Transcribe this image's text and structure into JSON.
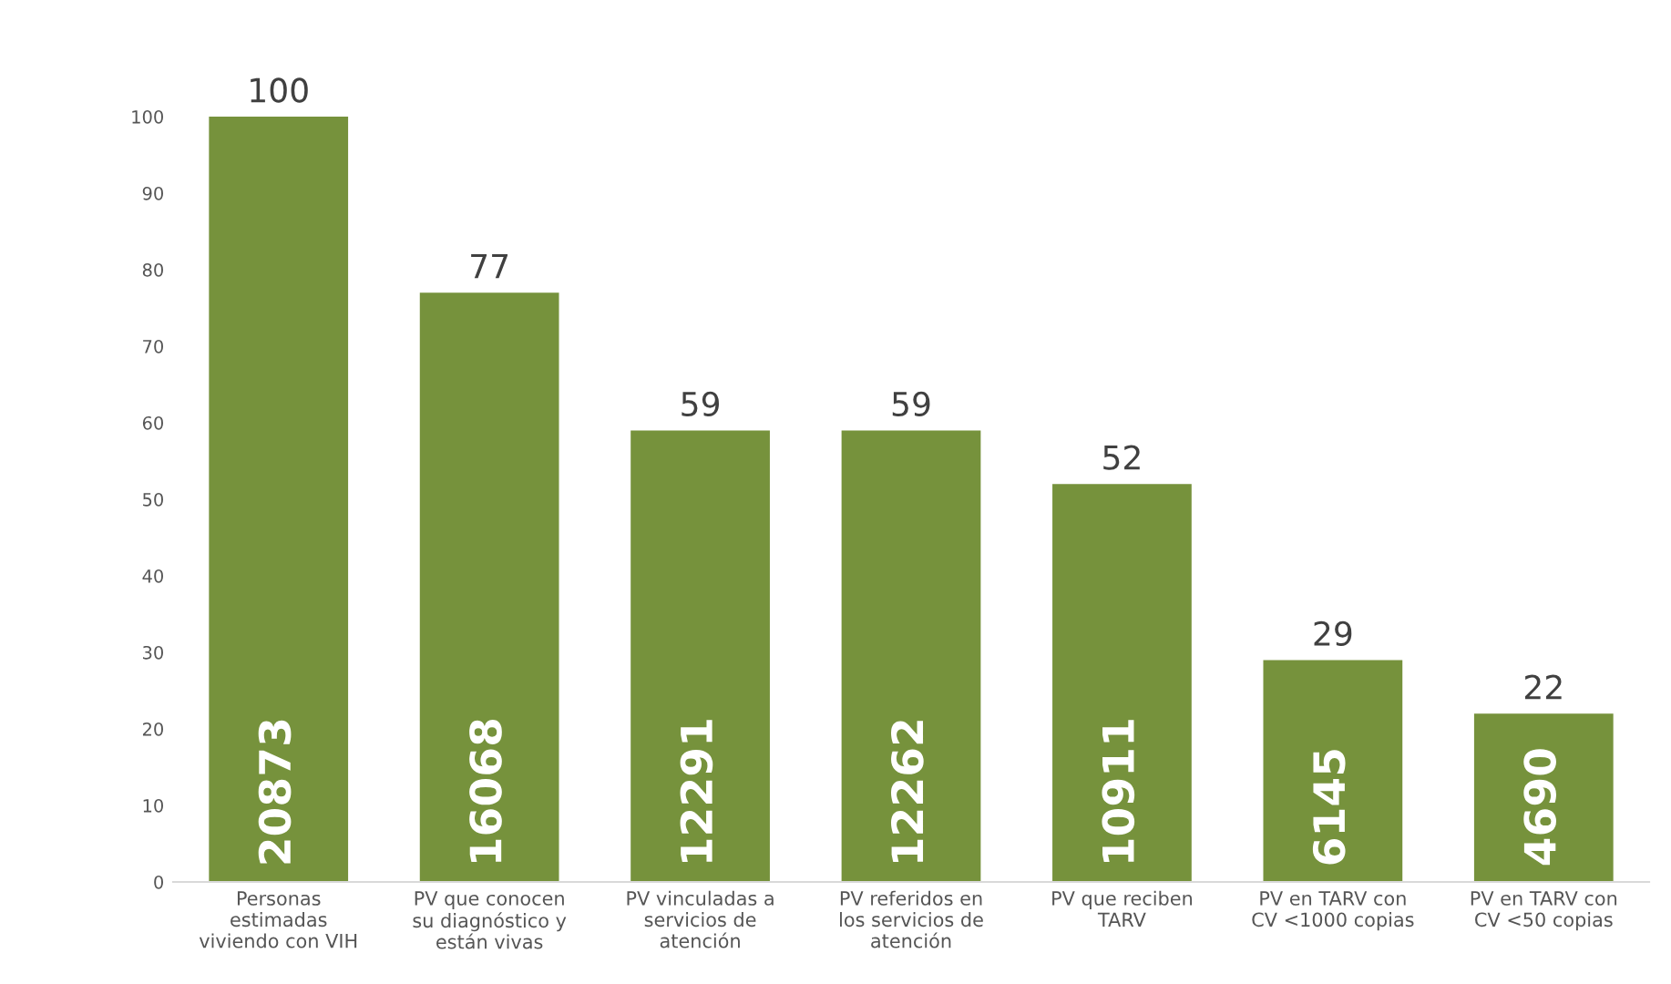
{
  "chart_data": {
    "type": "bar",
    "categories": [
      "Personas\nestimadas\nviviendo con VIH",
      "PV que conocen\nsu diagnóstico y\nestán vivas",
      "PV vinculadas a\nservicios de\natención",
      "PV referidos en\nlos servicios de\natención",
      "PV que reciben\nTARV",
      "PV en TARV con\nCV <1000 copias",
      "PV en TARV con\nCV <50 copias"
    ],
    "values": [
      100,
      77,
      59,
      59,
      52,
      29,
      22
    ],
    "color": "#76923c",
    "ylim": [
      0,
      100
    ],
    "yticks": [
      0,
      10,
      20,
      30,
      40,
      50,
      60,
      70,
      80,
      90,
      100
    ],
    "data_labels": true,
    "grid": false,
    "annotations": [
      {
        "text": "20873",
        "x": "Personas\nestimadas\nviviendo con VIH",
        "y": 0
      },
      {
        "text": "16068",
        "x": "PV que conocen\nsu diagnóstico y\nestán vivas",
        "y": 0
      },
      {
        "text": "12291",
        "x": "PV vinculadas a\nservicios de\natención",
        "y": 0
      },
      {
        "text": "12262",
        "x": "PV referidos en\nlos servicios de\natención",
        "y": 0
      },
      {
        "text": "10911",
        "x": "PV que reciben\nTARV",
        "y": 0
      },
      {
        "text": "6145",
        "x": "PV en TARV con\nCV <1000 copias",
        "y": 0
      },
      {
        "text": "4690",
        "x": "PV en TARV con\nCV <50 copias",
        "y": 0
      }
    ]
  }
}
